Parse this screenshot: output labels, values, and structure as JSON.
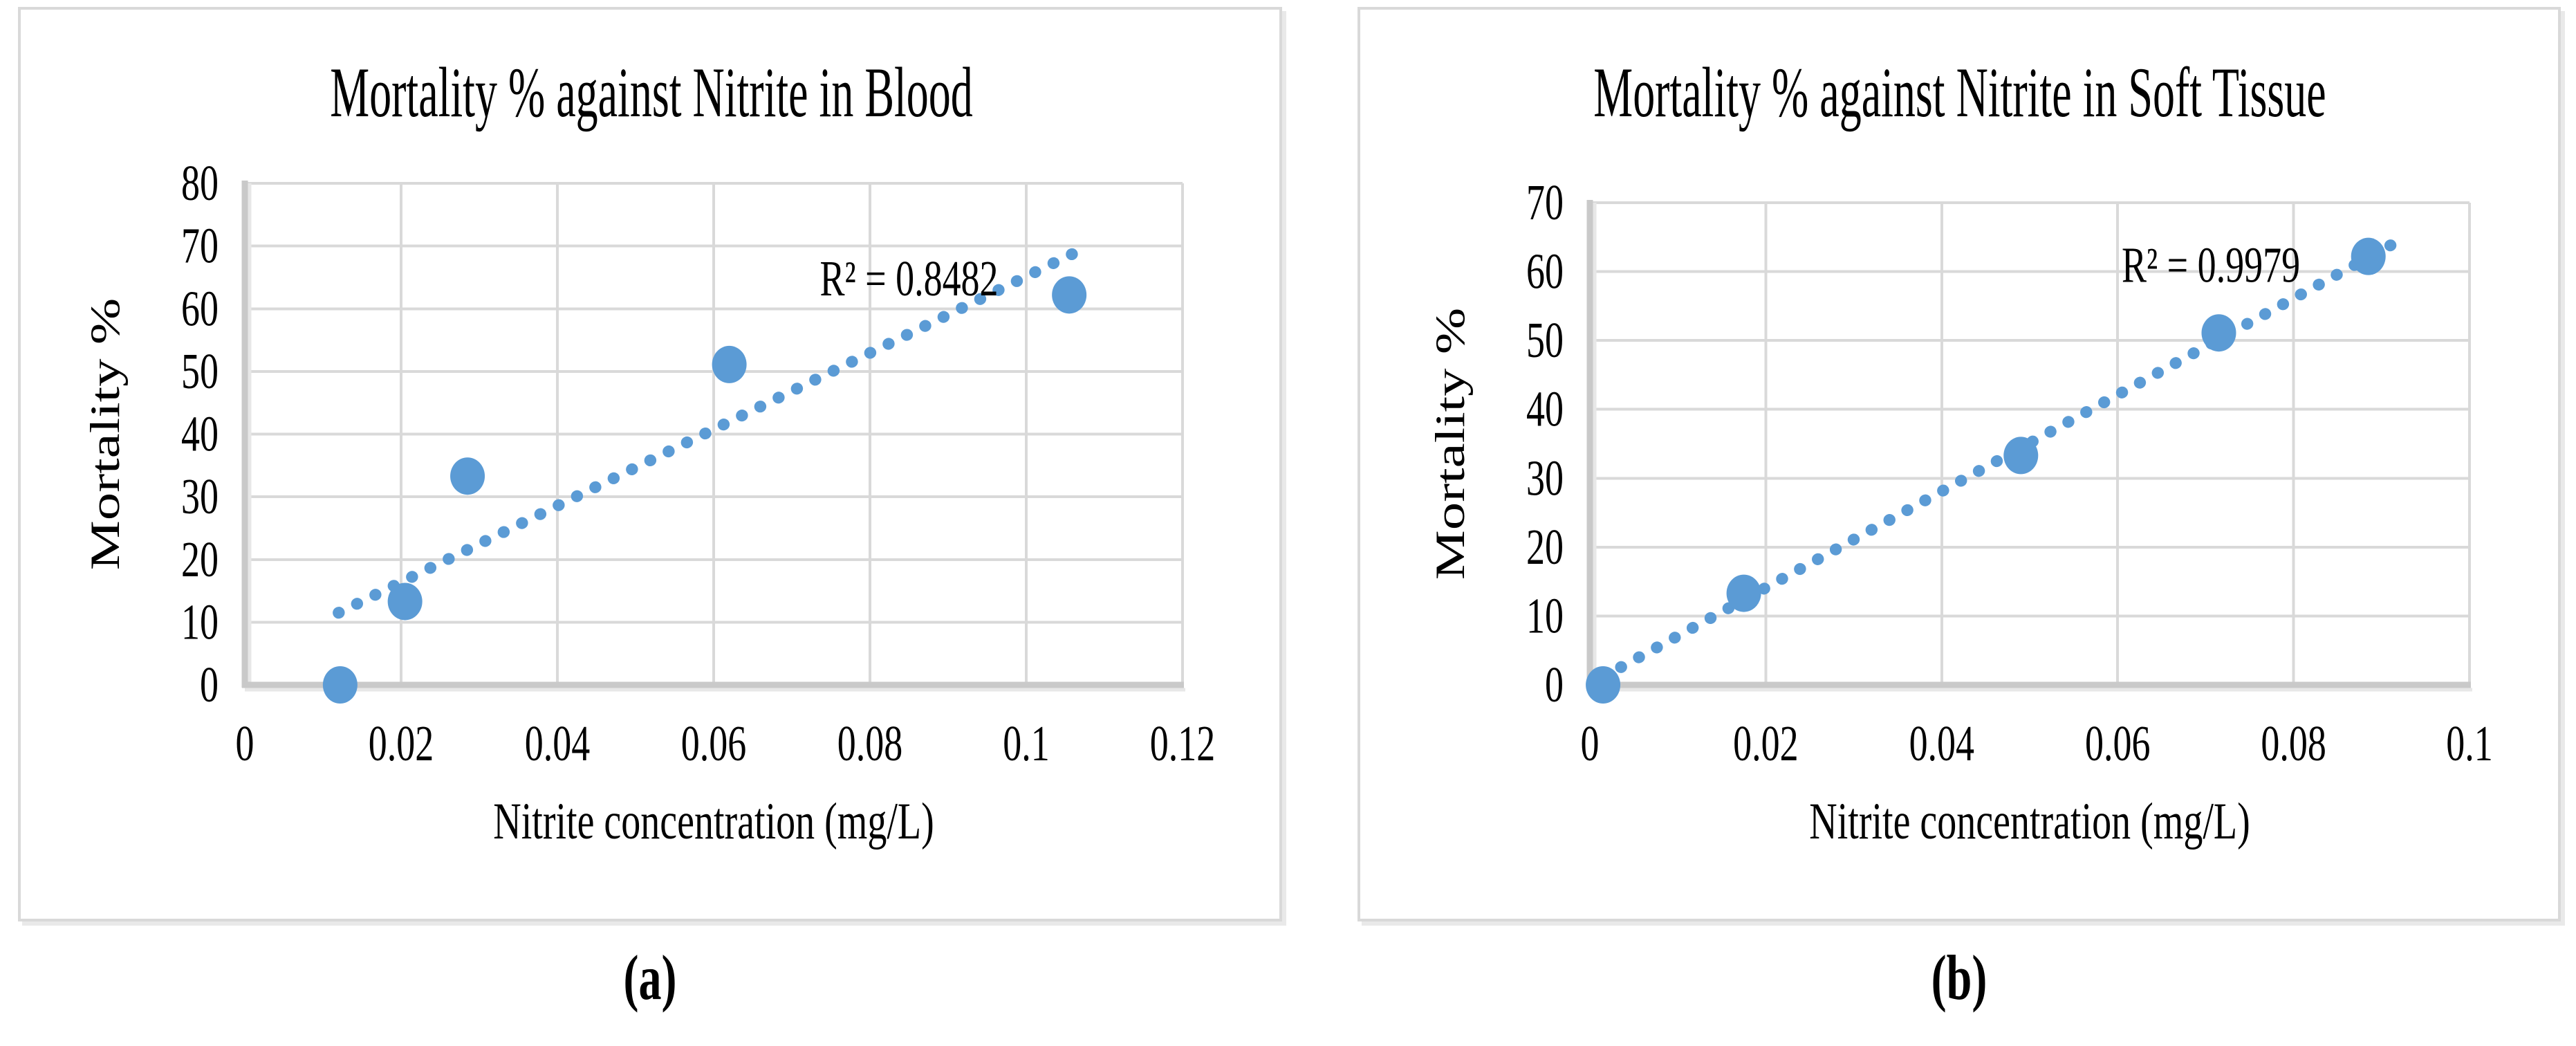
{
  "figure": {
    "panel_a_label": "(a)",
    "panel_b_label": "(b)"
  },
  "colors": {
    "marker": "#5B9BD5",
    "trendline": "#5B9BD5",
    "gridline": "#D9D9D9",
    "axis": "#C9C9C9",
    "axis_shadow": "#E7E7E7",
    "text": "#000000",
    "panel_border": "#D9D9D9"
  },
  "chart_data": [
    {
      "type": "scatter",
      "panel": "a",
      "title": "Mortality % against Nitrite in Blood",
      "xlabel": "Nitrite concentration (mg/L)",
      "ylabel": "Mortality %",
      "xlim": [
        0,
        0.12
      ],
      "ylim": [
        0,
        80
      ],
      "xtick_labels": [
        "0",
        "0.02",
        "0.04",
        "0.06",
        "0.08",
        "0.1",
        "0.12"
      ],
      "ytick_labels": [
        "0",
        "10",
        "20",
        "30",
        "40",
        "50",
        "60",
        "70",
        "80"
      ],
      "grid": true,
      "legend": "none",
      "points": [
        [
          0.0122,
          0
        ],
        [
          0.0205,
          13.3
        ],
        [
          0.0285,
          33.3
        ],
        [
          0.062,
          51.1
        ],
        [
          0.1055,
          62.2
        ]
      ],
      "trendline": {
        "style": "dotted",
        "x1": 0.012,
        "y1": 11.5,
        "x2": 0.1065,
        "y2": 69.1
      },
      "r2_label": "R² = 0.8482",
      "r2_pos": [
        0.085,
        64.8
      ]
    },
    {
      "type": "scatter",
      "panel": "b",
      "title": "Mortality % against Nitrite in Soft Tissue",
      "xlabel": "Nitrite concentration (mg/L)",
      "ylabel": "Mortality %",
      "xlim": [
        0,
        0.1
      ],
      "ylim": [
        0,
        70
      ],
      "xtick_labels": [
        "0",
        "0.02",
        "0.04",
        "0.06",
        "0.08",
        "0.1"
      ],
      "ytick_labels": [
        "0",
        "10",
        "20",
        "30",
        "40",
        "50",
        "60",
        "70"
      ],
      "grid": true,
      "legend": "none",
      "points": [
        [
          0.0015,
          0
        ],
        [
          0.0175,
          13.3
        ],
        [
          0.049,
          33.3
        ],
        [
          0.0715,
          51.1
        ],
        [
          0.0885,
          62.2
        ]
      ],
      "trendline": {
        "style": "dotted",
        "x1": 0.0015,
        "y1": 1.15,
        "x2": 0.0915,
        "y2": 64.15
      },
      "r2_label": "R² = 0.9979",
      "r2_pos": [
        0.0706,
        60.9
      ]
    }
  ]
}
